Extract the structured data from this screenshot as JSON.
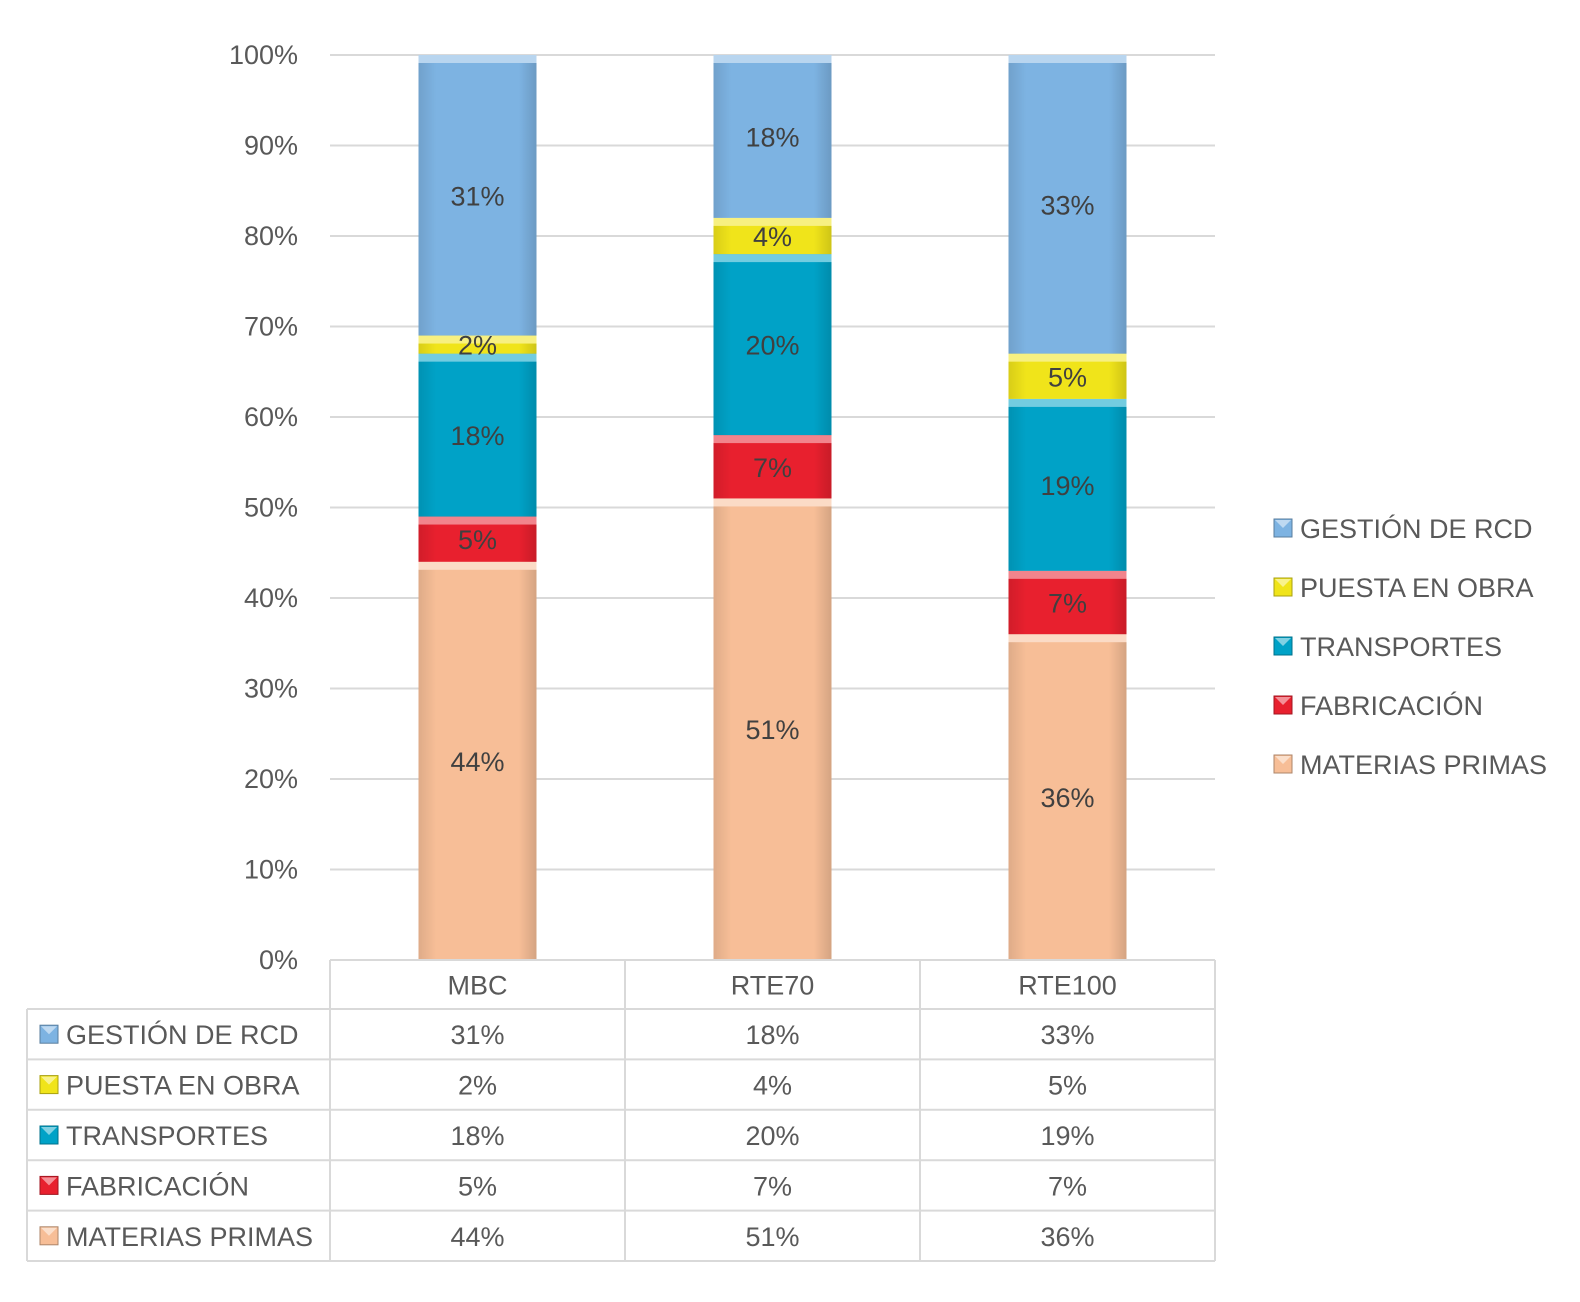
{
  "chart_data": {
    "type": "bar",
    "stacked": true,
    "percent_stacked": true,
    "categories": [
      "MBC",
      "RTE70",
      "RTE100"
    ],
    "series": [
      {
        "name": "MATERIAS PRIMAS",
        "values": [
          44,
          51,
          36
        ],
        "labels": [
          "44%",
          "51%",
          "36%"
        ],
        "color": "#F7BE97"
      },
      {
        "name": "FABRICACIÓN",
        "values": [
          5,
          7,
          7
        ],
        "labels": [
          "5%",
          "7%",
          "7%"
        ],
        "color": "#E8202E"
      },
      {
        "name": "TRANSPORTES",
        "values": [
          18,
          20,
          19
        ],
        "labels": [
          "18%",
          "20%",
          "19%"
        ],
        "color": "#00A2C7"
      },
      {
        "name": "PUESTA EN OBRA",
        "values": [
          2,
          4,
          5
        ],
        "labels": [
          "2%",
          "4%",
          "5%"
        ],
        "color": "#F0E41A"
      },
      {
        "name": "GESTIÓN DE RCD",
        "values": [
          31,
          18,
          33
        ],
        "labels": [
          "31%",
          "18%",
          "33%"
        ],
        "color": "#7DB3E2"
      }
    ],
    "legend_order": [
      "GESTIÓN DE RCD",
      "PUESTA EN OBRA",
      "TRANSPORTES",
      "FABRICACIÓN",
      "MATERIAS PRIMAS"
    ],
    "yticks": [
      "0%",
      "10%",
      "20%",
      "30%",
      "40%",
      "50%",
      "60%",
      "70%",
      "80%",
      "90%",
      "100%"
    ],
    "ylim": [
      0,
      100
    ],
    "grid": true,
    "legend_position": "right",
    "data_table": true,
    "title": "",
    "xlabel": "",
    "ylabel": ""
  }
}
